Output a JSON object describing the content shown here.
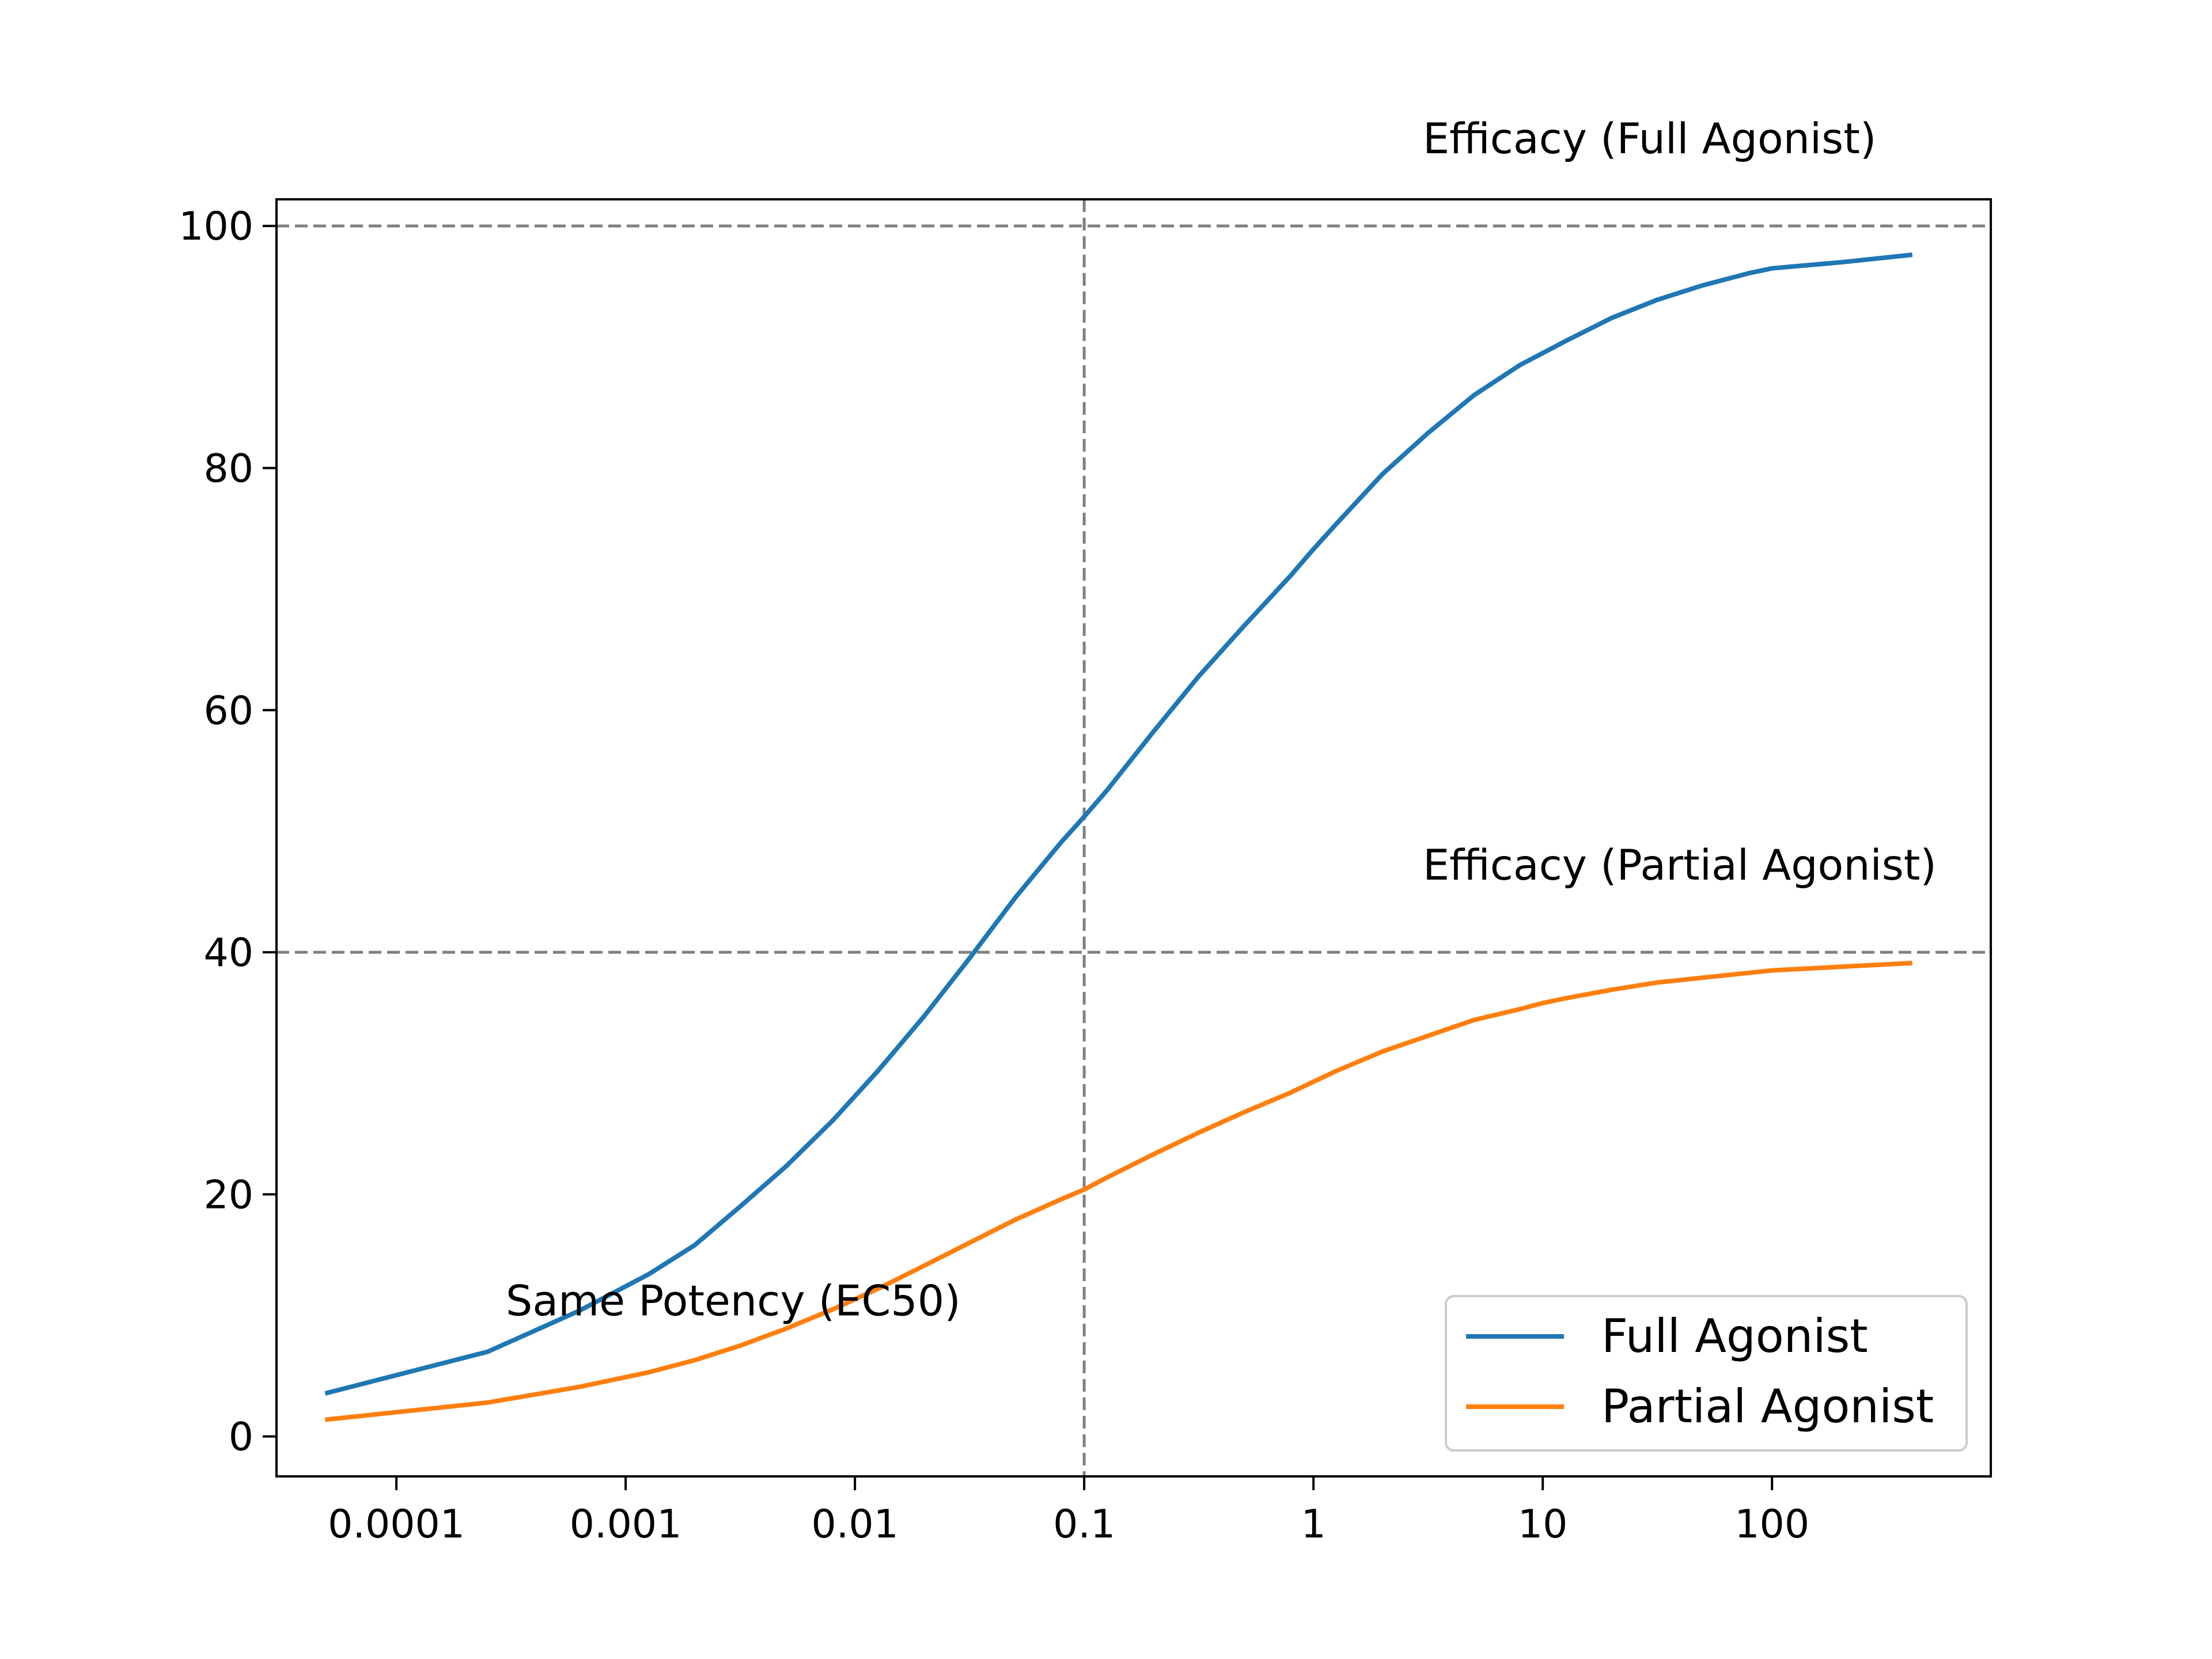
{
  "chart_data": {
    "type": "line",
    "title": "",
    "xlabel": "",
    "ylabel": "",
    "xscale": "log",
    "xlim": [
      3e-05,
      900
    ],
    "ylim": [
      -3.3,
      102.2
    ],
    "xticks": [
      0.0001,
      0.001,
      0.01,
      0.1,
      1,
      10,
      100
    ],
    "xtick_labels": [
      "0.0001",
      "0.001",
      "0.01",
      "0.1",
      "1",
      "10",
      "100"
    ],
    "yticks": [
      0,
      20,
      40,
      60,
      80,
      100
    ],
    "ytick_labels": [
      "0",
      "20",
      "40",
      "60",
      "80",
      "100"
    ],
    "grid": false,
    "legend_position": "lower-right",
    "series": [
      {
        "name": "Full Agonist",
        "color": "#1f77b4",
        "x": [
          5e-05,
          0.00025,
          0.00063,
          0.00126,
          0.002,
          0.00316,
          0.005,
          0.008,
          0.0126,
          0.02,
          0.0316,
          0.05,
          0.0794,
          0.1,
          0.126,
          0.2,
          0.316,
          0.5,
          0.794,
          1,
          1.26,
          2,
          3.16,
          5,
          7.94,
          10,
          12.6,
          20,
          31.6,
          50,
          79.4,
          100,
          200,
          400
        ],
        "y": [
          3.6,
          7.0,
          10.4,
          13.4,
          15.8,
          19.0,
          22.3,
          26.1,
          30.2,
          34.7,
          39.5,
          44.5,
          49.1,
          51.2,
          53.4,
          58.2,
          62.8,
          67.0,
          71.1,
          73.3,
          75.4,
          79.5,
          82.9,
          86.0,
          88.5,
          89.5,
          90.5,
          92.4,
          93.9,
          95.1,
          96.1,
          96.5,
          97.0,
          97.6
        ]
      },
      {
        "name": "Partial Agonist",
        "color": "#ff7f0e",
        "x": [
          5e-05,
          0.00025,
          0.00063,
          0.00126,
          0.002,
          0.00316,
          0.005,
          0.008,
          0.0126,
          0.02,
          0.0316,
          0.05,
          0.0794,
          0.1,
          0.126,
          0.2,
          0.316,
          0.5,
          0.794,
          1,
          1.26,
          2,
          3.16,
          5,
          7.94,
          10,
          12.6,
          20,
          31.6,
          50,
          79.4,
          100,
          200,
          400
        ],
        "y": [
          1.4,
          2.8,
          4.1,
          5.3,
          6.3,
          7.5,
          8.9,
          10.5,
          12.2,
          14.1,
          16.0,
          17.9,
          19.6,
          20.4,
          21.4,
          23.3,
          25.1,
          26.8,
          28.4,
          29.3,
          30.2,
          31.8,
          33.1,
          34.4,
          35.3,
          35.8,
          36.2,
          36.9,
          37.5,
          37.9,
          38.3,
          38.5,
          38.8,
          39.1
        ]
      }
    ],
    "reference_lines": [
      {
        "orientation": "horizontal",
        "value": 100,
        "style": "dashed",
        "color": "#808080"
      },
      {
        "orientation": "horizontal",
        "value": 40,
        "style": "dashed",
        "color": "#808080"
      },
      {
        "orientation": "vertical",
        "value": 0.1,
        "style": "dashed",
        "color": "#808080"
      }
    ],
    "annotations": [
      {
        "text": "Efficacy (Full Agonist)",
        "x": 3,
        "y": 106
      },
      {
        "text": "Efficacy (Partial Agonist)",
        "x": 3,
        "y": 46
      },
      {
        "text": "Same Potency (EC50)",
        "x": 0.0003,
        "y": 10
      }
    ]
  }
}
